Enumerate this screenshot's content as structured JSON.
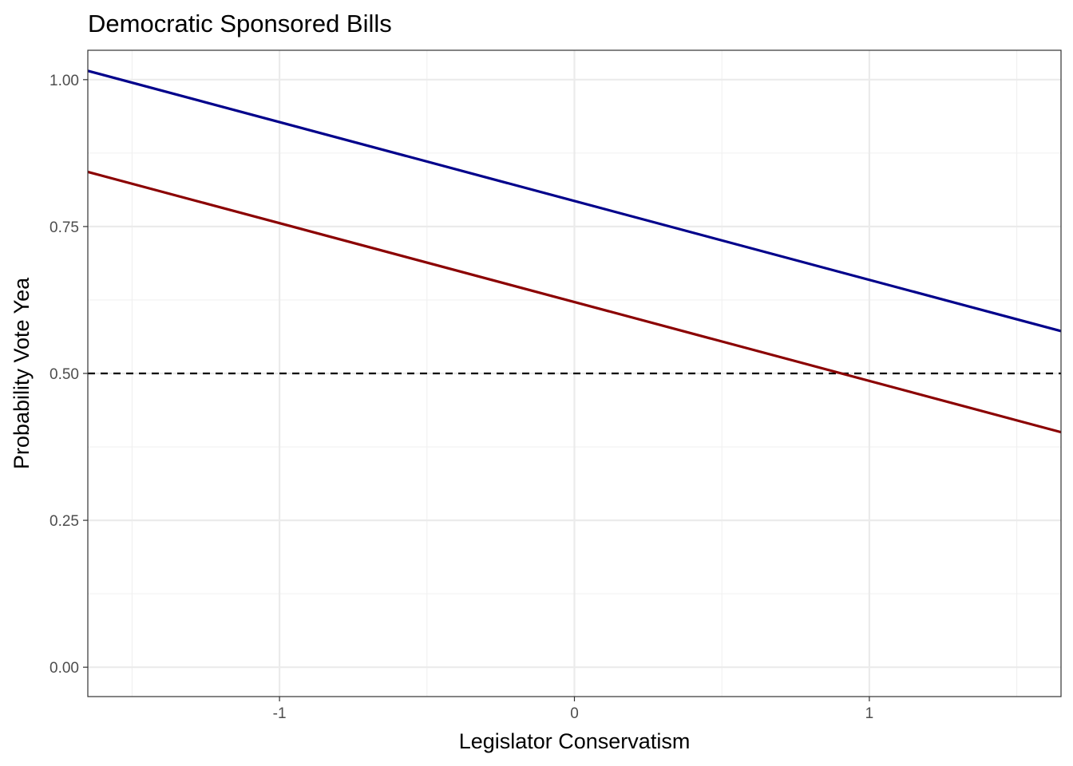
{
  "chart_data": {
    "type": "line",
    "title": "Democratic Sponsored Bills",
    "xlabel": "Legislator Conservatism",
    "ylabel": "Probability Vote Yea",
    "xlim": [
      -1.65,
      1.65
    ],
    "ylim": [
      -0.05,
      1.05
    ],
    "x_ticks": [
      -1,
      0,
      1
    ],
    "x_tick_labels": [
      "-1",
      "0",
      "1"
    ],
    "y_ticks": [
      0,
      0.25,
      0.5,
      0.75,
      1.0
    ],
    "y_tick_labels": [
      "0.00",
      "0.25",
      "0.50",
      "0.75",
      "1.00"
    ],
    "x_minor_ticks": [
      -1.5,
      -0.5,
      0.5,
      1.5
    ],
    "y_minor_ticks": [
      0.125,
      0.375,
      0.625,
      0.875
    ],
    "grid": true,
    "series": [
      {
        "color": "#00008B",
        "x": [
          -1.65,
          1.65
        ],
        "y": [
          1.015,
          0.572
        ]
      },
      {
        "color": "#8B0000",
        "x": [
          -1.65,
          1.65
        ],
        "y": [
          0.843,
          0.4
        ]
      }
    ],
    "reference_lines": [
      {
        "orientation": "horizontal",
        "y": 0.5,
        "style": "dashed",
        "color": "#000000"
      }
    ]
  }
}
